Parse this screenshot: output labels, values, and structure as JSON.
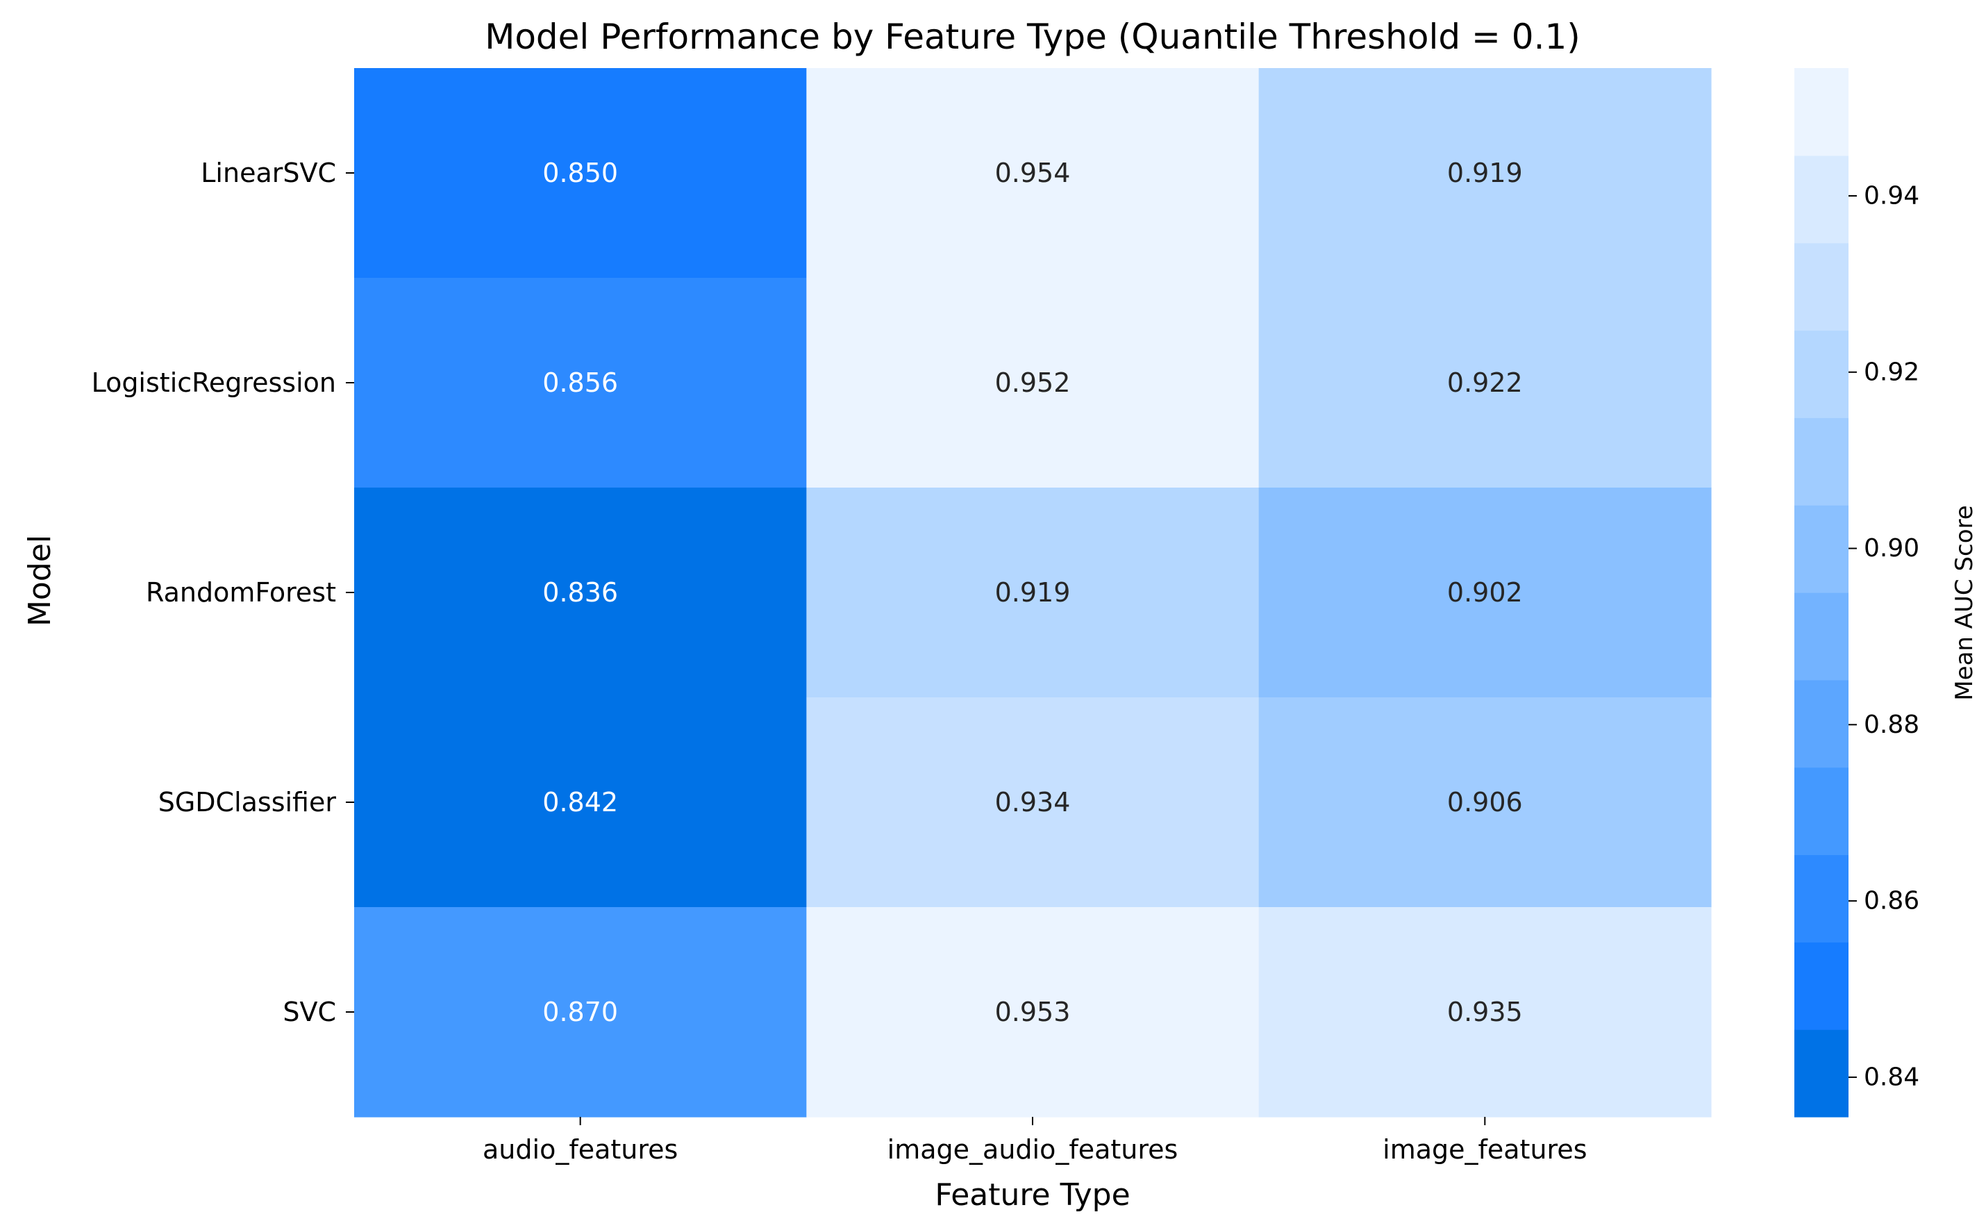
{
  "chart_data": {
    "type": "heatmap",
    "title": "Model Performance by Feature Type (Quantile Threshold = 0.1)",
    "xlabel": "Feature Type",
    "ylabel": "Model",
    "x_categories": [
      "audio_features",
      "image_audio_features",
      "image_features"
    ],
    "y_categories": [
      "LinearSVC",
      "LogisticRegression",
      "RandomForest",
      "SGDClassifier",
      "SVC"
    ],
    "values": [
      [
        0.85,
        0.954,
        0.919
      ],
      [
        0.856,
        0.952,
        0.922
      ],
      [
        0.836,
        0.919,
        0.902
      ],
      [
        0.842,
        0.934,
        0.906
      ],
      [
        0.87,
        0.953,
        0.935
      ]
    ],
    "value_labels": [
      [
        "0.850",
        "0.954",
        "0.919"
      ],
      [
        "0.856",
        "0.952",
        "0.922"
      ],
      [
        "0.836",
        "0.919",
        "0.902"
      ],
      [
        "0.842",
        "0.934",
        "0.906"
      ],
      [
        "0.870",
        "0.953",
        "0.935"
      ]
    ],
    "colorbar": {
      "label": "Mean AUC Score",
      "range": [
        0.8355,
        0.9545
      ],
      "ticks": [
        0.84,
        0.86,
        0.88,
        0.9,
        0.92,
        0.94
      ],
      "tick_labels": [
        "0.84",
        "0.86",
        "0.88",
        "0.90",
        "0.92",
        "0.94"
      ],
      "levels": 12,
      "colors": [
        "#0072e6",
        "#167cff",
        "#2d8aff",
        "#4499ff",
        "#5ca6ff",
        "#73b3ff",
        "#8ac0ff",
        "#a0ccff",
        "#b4d7ff",
        "#c6e0ff",
        "#d8eaff",
        "#ebf4ff"
      ]
    },
    "text_colors": {
      "dark_cell": "#ffffff",
      "light_cell": "#262626"
    }
  }
}
